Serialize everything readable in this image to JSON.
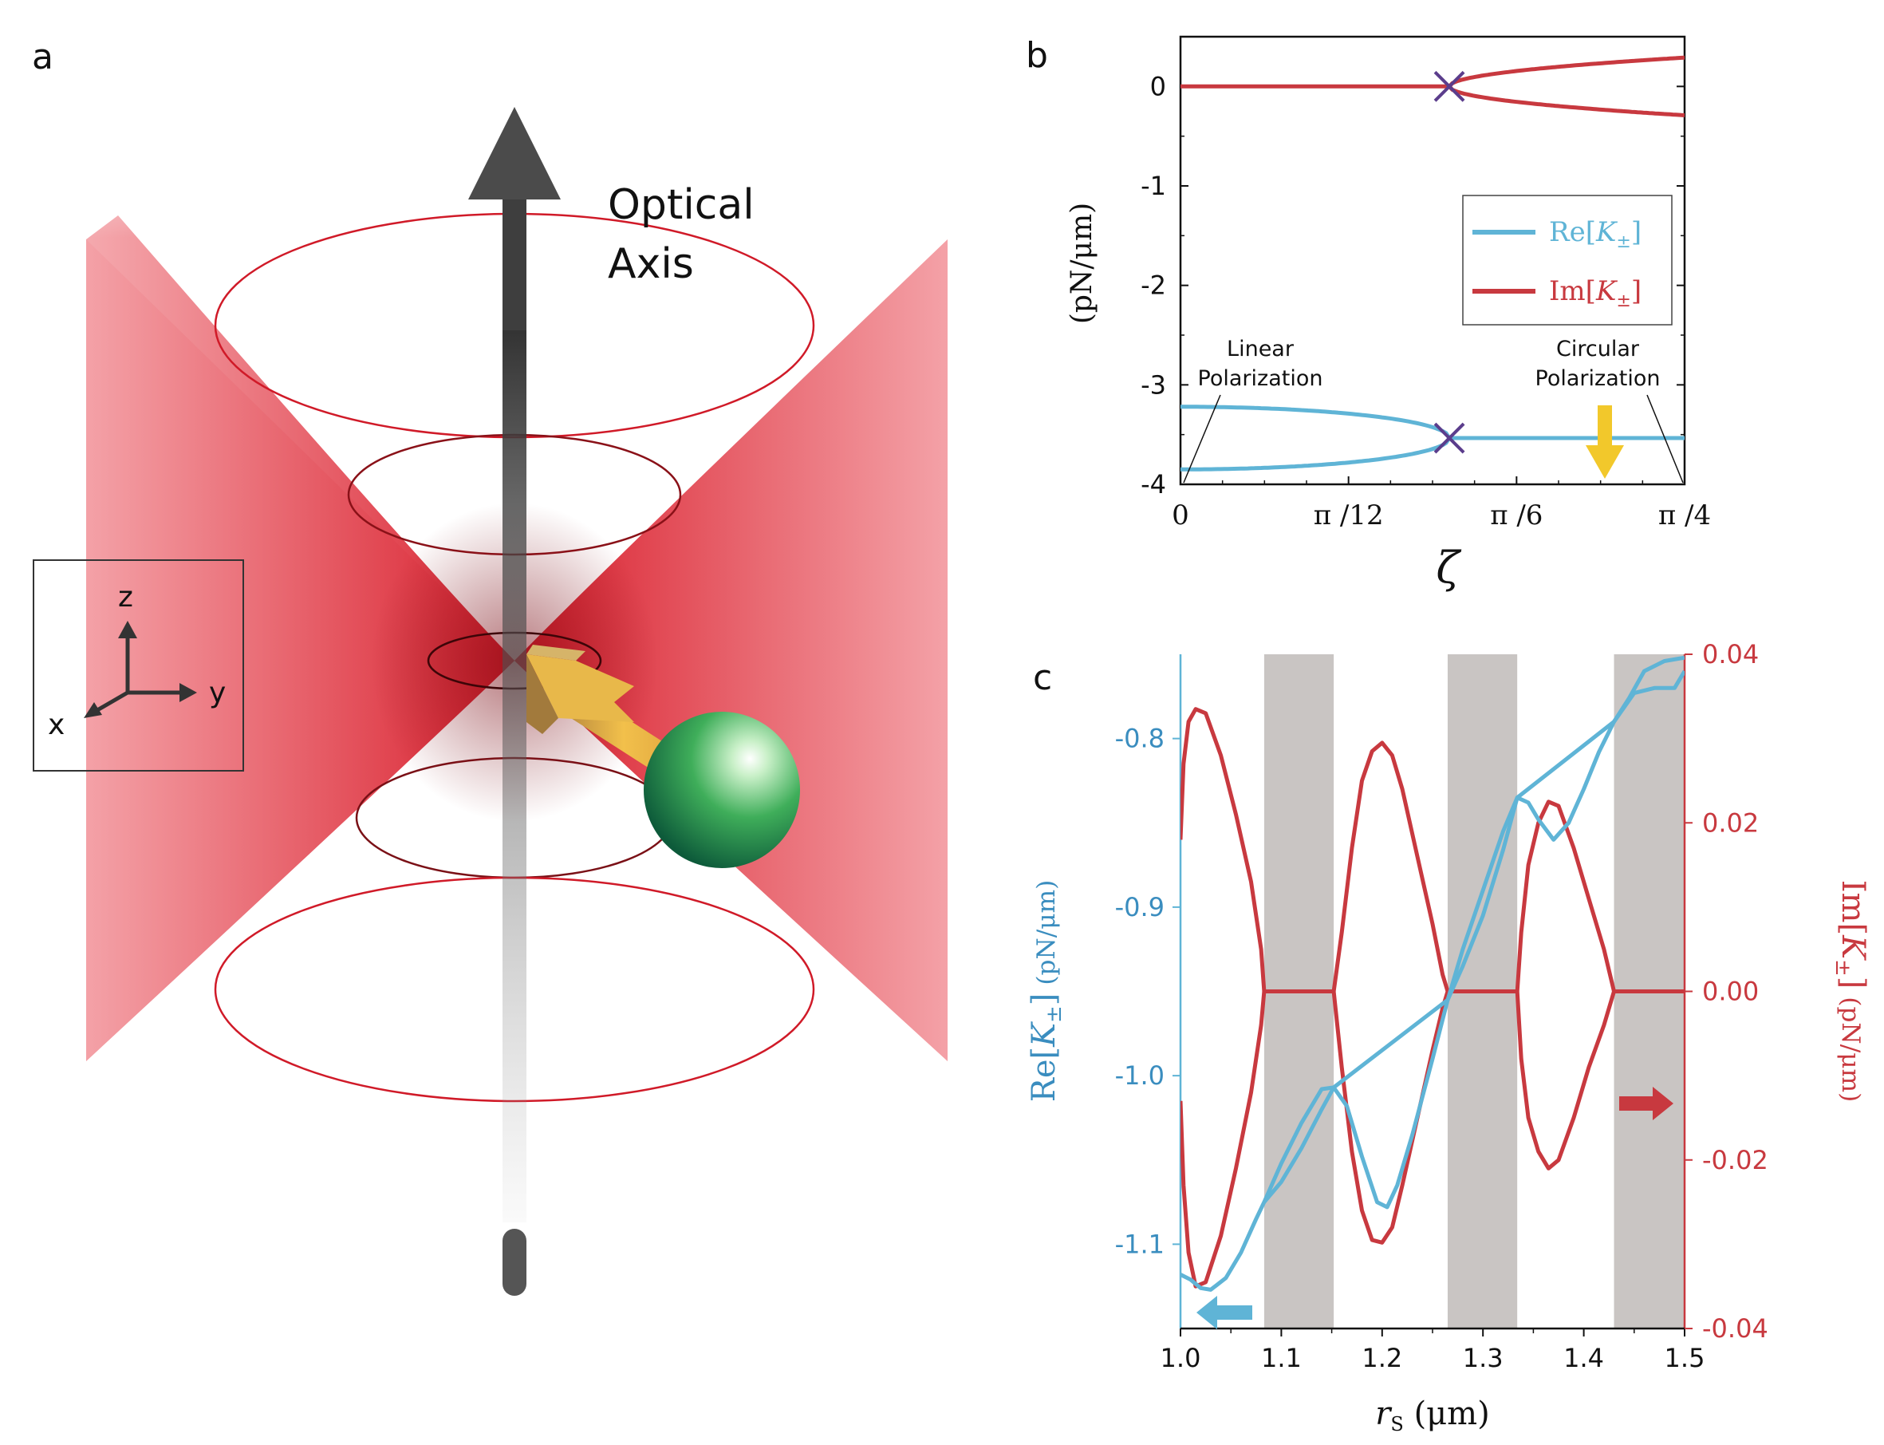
{
  "colors": {
    "re": "#5fb4d6",
    "im": "#c8393f",
    "accent": "#f2c82b",
    "marker": "#5b3d8c",
    "beam": "#e3303e",
    "sphere": "#2f9a5a",
    "band": "#c9c5c3",
    "axisArrow": "#4b4b4b"
  },
  "panel_a": {
    "label": "a",
    "axis_text": [
      "Optical",
      "Axis"
    ],
    "coords": {
      "z": "z",
      "y": "y",
      "x": "x"
    }
  },
  "panel_b": {
    "label": "b"
  },
  "panel_c": {
    "label": "c"
  },
  "chart_data": [
    {
      "type": "line",
      "title": "",
      "xlabel": "ζ",
      "ylabel": "(pN/μm)",
      "x_range": [
        0,
        0.7854
      ],
      "ylim": [
        -4,
        0.5
      ],
      "x_ticks": [
        {
          "v": 0,
          "label": "0"
        },
        {
          "v": 0.2618,
          "label": "π /12"
        },
        {
          "v": 0.5236,
          "label": "π /6"
        },
        {
          "v": 0.7854,
          "label": "π /4"
        }
      ],
      "y_ticks": [
        {
          "v": 0,
          "label": "0"
        },
        {
          "v": -1,
          "label": "-1"
        },
        {
          "v": -2,
          "label": "-2"
        },
        {
          "v": -3,
          "label": "-3"
        },
        {
          "v": -4,
          "label": "-4"
        }
      ],
      "exceptional_point": 0.4189,
      "series": [
        {
          "name": "Re[K±]",
          "color": "#5fb4d6",
          "description": "two branches -3.22 and -3.85 at ζ=0 merging to -3.53 at the exceptional point"
        },
        {
          "name": "Im[K±]",
          "color": "#c8393f",
          "description": "zero until the exceptional point, then splitting to ±0.29 at π/4"
        }
      ],
      "legend": {
        "position": "right",
        "entries": [
          {
            "pre": "Re[",
            "sym": "K",
            "sub": "±",
            "post": "]",
            "color": "#5fb4d6"
          },
          {
            "pre": "Im[",
            "sym": "K",
            "sub": "±",
            "post": "]",
            "color": "#c8393f"
          }
        ]
      },
      "annotations": [
        {
          "lines": [
            "Linear",
            "Polarization"
          ]
        },
        {
          "lines": [
            "Circular",
            "Polarization"
          ]
        }
      ]
    },
    {
      "type": "line",
      "title": "",
      "xlabel_sym": "r",
      "xlabel_sub": "S",
      "xlabel_unit": "(μm)",
      "xlim": [
        1.0,
        1.5
      ],
      "x_ticks": [
        1.0,
        1.1,
        1.2,
        1.3,
        1.4,
        1.5
      ],
      "x_tick_labels": [
        "1.0",
        "1.1",
        "1.2",
        "1.3",
        "1.4",
        "1.5"
      ],
      "ylabel_left": {
        "pre": "Re[",
        "sym": "K",
        "sub": "±",
        "post": "]",
        "unit": "(pN/μm)"
      },
      "ylim_left": [
        -1.15,
        -0.75
      ],
      "y_ticks_left": [
        -0.8,
        -0.9,
        -1.0,
        -1.1
      ],
      "y_tick_labels_left": [
        "-0.8",
        "-0.9",
        "-1.0",
        "-1.1"
      ],
      "ylabel_right": {
        "pre": "Im[",
        "sym": "K",
        "sub": "±",
        "post": "]",
        "unit": "(pN/μm)"
      },
      "ylim_right": [
        -0.04,
        0.04
      ],
      "y_ticks_right": [
        0.04,
        0.02,
        0.0,
        -0.02,
        -0.04
      ],
      "y_tick_labels_right": [
        "0.04",
        "0.02",
        "0.00",
        "-0.02",
        "-0.04"
      ],
      "shaded_bands": [
        [
          1.083,
          1.152
        ],
        [
          1.265,
          1.334
        ],
        [
          1.43,
          1.5
        ]
      ],
      "series": [
        {
          "name": "Re[K±] branch 1",
          "color": "#5fb4d6",
          "axis": "left",
          "points": [
            [
              1.0,
              -1.118
            ],
            [
              1.01,
              -1.121
            ],
            [
              1.02,
              -1.126
            ],
            [
              1.03,
              -1.127
            ],
            [
              1.045,
              -1.12
            ],
            [
              1.06,
              -1.105
            ],
            [
              1.075,
              -1.085
            ],
            [
              1.083,
              -1.075
            ],
            [
              1.1,
              -1.052
            ],
            [
              1.12,
              -1.028
            ],
            [
              1.14,
              -1.008
            ],
            [
              1.152,
              -1.007
            ],
            [
              1.165,
              -1.018
            ],
            [
              1.18,
              -1.048
            ],
            [
              1.195,
              -1.075
            ],
            [
              1.205,
              -1.078
            ],
            [
              1.215,
              -1.065
            ],
            [
              1.23,
              -1.035
            ],
            [
              1.25,
              -0.99
            ],
            [
              1.265,
              -0.955
            ],
            [
              1.28,
              -0.925
            ],
            [
              1.3,
              -0.89
            ],
            [
              1.32,
              -0.855
            ],
            [
              1.334,
              -0.835
            ],
            [
              1.345,
              -0.838
            ],
            [
              1.355,
              -0.848
            ],
            [
              1.37,
              -0.86
            ],
            [
              1.385,
              -0.85
            ],
            [
              1.4,
              -0.83
            ],
            [
              1.415,
              -0.808
            ],
            [
              1.43,
              -0.79
            ],
            [
              1.445,
              -0.776
            ],
            [
              1.46,
              -0.76
            ],
            [
              1.48,
              -0.754
            ],
            [
              1.5,
              -0.752
            ]
          ]
        },
        {
          "name": "Re[K±] branch 2",
          "color": "#5fb4d6",
          "axis": "left",
          "points": [
            [
              1.083,
              -1.075
            ],
            [
              1.1,
              -1.063
            ],
            [
              1.12,
              -1.043
            ],
            [
              1.14,
              -1.02
            ],
            [
              1.152,
              -1.007
            ],
            [
              1.265,
              -0.955
            ],
            [
              1.28,
              -0.935
            ],
            [
              1.3,
              -0.905
            ],
            [
              1.32,
              -0.866
            ],
            [
              1.334,
              -0.835
            ],
            [
              1.43,
              -0.79
            ],
            [
              1.45,
              -0.773
            ],
            [
              1.47,
              -0.77
            ],
            [
              1.49,
              -0.77
            ],
            [
              1.5,
              -0.76
            ]
          ]
        },
        {
          "name": "Im[K±]",
          "color": "#c8393f",
          "axis": "right",
          "segments": [
            [
              [
                1.0,
                0.018
              ],
              [
                1.003,
                0.027
              ],
              [
                1.008,
                0.032
              ],
              [
                1.015,
                0.0335
              ],
              [
                1.025,
                0.033
              ],
              [
                1.04,
                0.028
              ],
              [
                1.055,
                0.021
              ],
              [
                1.07,
                0.013
              ],
              [
                1.08,
                0.005
              ],
              [
                1.083,
                0.0
              ]
            ],
            [
              [
                1.0,
                -0.013
              ],
              [
                1.003,
                -0.023
              ],
              [
                1.008,
                -0.031
              ],
              [
                1.015,
                -0.035
              ],
              [
                1.025,
                -0.0345
              ],
              [
                1.04,
                -0.029
              ],
              [
                1.055,
                -0.021
              ],
              [
                1.07,
                -0.012
              ],
              [
                1.08,
                -0.004
              ],
              [
                1.083,
                0.0
              ]
            ],
            [
              [
                1.083,
                0.0
              ],
              [
                1.152,
                0.0
              ]
            ],
            [
              [
                1.152,
                0.0
              ],
              [
                1.16,
                0.007
              ],
              [
                1.17,
                0.017
              ],
              [
                1.18,
                0.025
              ],
              [
                1.19,
                0.0285
              ],
              [
                1.2,
                0.0295
              ],
              [
                1.21,
                0.028
              ],
              [
                1.22,
                0.024
              ],
              [
                1.235,
                0.016
              ],
              [
                1.25,
                0.008
              ],
              [
                1.26,
                0.002
              ],
              [
                1.265,
                0.0
              ]
            ],
            [
              [
                1.152,
                0.0
              ],
              [
                1.16,
                -0.009
              ],
              [
                1.17,
                -0.019
              ],
              [
                1.18,
                -0.026
              ],
              [
                1.19,
                -0.0295
              ],
              [
                1.2,
                -0.0298
              ],
              [
                1.21,
                -0.028
              ],
              [
                1.22,
                -0.023
              ],
              [
                1.235,
                -0.015
              ],
              [
                1.25,
                -0.007
              ],
              [
                1.26,
                -0.002
              ],
              [
                1.265,
                0.0
              ]
            ],
            [
              [
                1.265,
                0.0
              ],
              [
                1.334,
                0.0
              ]
            ],
            [
              [
                1.334,
                0.0
              ],
              [
                1.338,
                0.007
              ],
              [
                1.345,
                0.015
              ],
              [
                1.355,
                0.02
              ],
              [
                1.365,
                0.0225
              ],
              [
                1.375,
                0.022
              ],
              [
                1.39,
                0.017
              ],
              [
                1.405,
                0.011
              ],
              [
                1.42,
                0.005
              ],
              [
                1.43,
                0.0
              ]
            ],
            [
              [
                1.334,
                0.0
              ],
              [
                1.338,
                -0.008
              ],
              [
                1.345,
                -0.015
              ],
              [
                1.355,
                -0.019
              ],
              [
                1.365,
                -0.021
              ],
              [
                1.375,
                -0.02
              ],
              [
                1.39,
                -0.015
              ],
              [
                1.405,
                -0.009
              ],
              [
                1.42,
                -0.004
              ],
              [
                1.43,
                0.0
              ]
            ],
            [
              [
                1.43,
                0.0
              ],
              [
                1.5,
                0.0
              ]
            ]
          ]
        }
      ]
    }
  ]
}
